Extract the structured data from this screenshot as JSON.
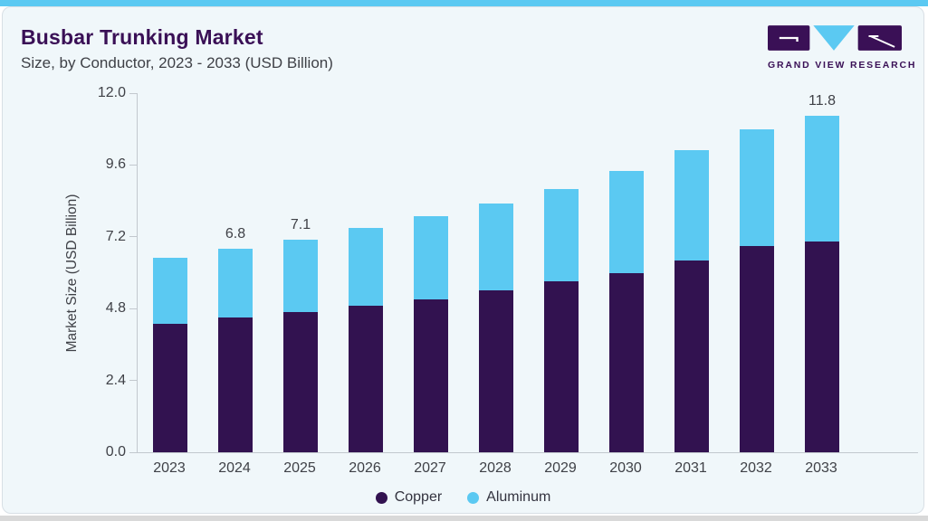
{
  "header": {
    "title": "Busbar Trunking Market",
    "subtitle": "Size, by Conductor, 2023 - 2033 (USD Billion)",
    "logo_text": "GRAND VIEW RESEARCH"
  },
  "colors": {
    "brand_purple": "#3A1056",
    "accent_blue": "#5BC9F2",
    "copper": "#321250",
    "aluminum": "#5BC9F2",
    "card_bg": "#F0F7FA",
    "axis_line": "#C2C8CE",
    "text": "#3F4147"
  },
  "chart_data": {
    "type": "bar",
    "stacked": true,
    "title": "Busbar Trunking Market Size, by Conductor, 2023 - 2033 (USD Billion)",
    "categories": [
      "2023",
      "2024",
      "2025",
      "2026",
      "2027",
      "2028",
      "2029",
      "2030",
      "2031",
      "2032",
      "2033"
    ],
    "series": [
      {
        "name": "Copper",
        "color": "#321250",
        "values": [
          4.3,
          4.5,
          4.7,
          4.9,
          5.1,
          5.4,
          5.7,
          6.0,
          6.4,
          6.9,
          7.4
        ]
      },
      {
        "name": "Aluminum",
        "color": "#5BC9F2",
        "values": [
          2.2,
          2.3,
          2.4,
          2.6,
          2.8,
          2.9,
          3.1,
          3.4,
          3.7,
          3.9,
          4.4
        ]
      }
    ],
    "totals": [
      6.5,
      6.8,
      7.1,
      7.5,
      7.9,
      8.3,
      8.8,
      9.4,
      10.1,
      10.8,
      11.8
    ],
    "bar_labels": [
      "",
      "6.8",
      "7.1",
      "",
      "",
      "",
      "",
      "",
      "",
      "",
      "11.8"
    ],
    "ylabel": "Market Size (USD Billion)",
    "ylim": [
      0,
      12
    ],
    "yticks": [
      "12.0",
      "9.6",
      "7.2",
      "4.8",
      "2.4",
      "0.0"
    ],
    "grid": false,
    "legend_position": "bottom"
  }
}
